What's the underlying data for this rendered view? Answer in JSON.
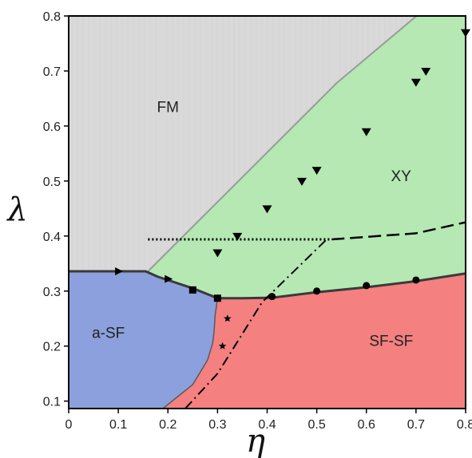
{
  "chart_data": {
    "type": "phase-diagram",
    "title": "",
    "xlabel": "η",
    "ylabel": "λ",
    "xlim": [
      0,
      0.8
    ],
    "ylim": [
      0.0865,
      0.8
    ],
    "grid": false,
    "x_ticks": [
      "0",
      "0.1",
      "0.2",
      "0.3",
      "0.4",
      "0.5",
      "0.6",
      "0.7",
      "0.8"
    ],
    "y_ticks": [
      "0.1",
      "0.2",
      "0.3",
      "0.4",
      "0.5",
      "0.6",
      "0.7",
      "0.8"
    ],
    "regions": [
      {
        "label": "FM",
        "color": "#d9d9d9",
        "label_at": [
          0.2,
          0.625
        ]
      },
      {
        "label": "XY",
        "color": "#b5e8b3",
        "label_at": [
          0.67,
          0.5
        ]
      },
      {
        "label": "a-SF",
        "color": "#8ba0dc",
        "label_at": [
          0.08,
          0.215
        ]
      },
      {
        "label": "SF-SF",
        "color": "#f48080",
        "label_at": [
          0.65,
          0.2
        ]
      }
    ],
    "boundaries": {
      "fm_upper": [
        [
          0.16,
          0.336
        ],
        [
          0.54,
          0.678
        ],
        [
          0.8,
          0.875
        ]
      ],
      "sf_upper": [
        [
          0,
          0.336
        ],
        [
          0.155,
          0.336
        ],
        [
          0.18,
          0.326
        ],
        [
          0.25,
          0.305
        ],
        [
          0.3,
          0.287
        ],
        [
          0.35,
          0.287
        ],
        [
          0.41,
          0.288
        ],
        [
          0.5,
          0.298
        ],
        [
          0.6,
          0.307
        ],
        [
          0.7,
          0.318
        ],
        [
          0.8,
          0.332
        ]
      ],
      "asf_sf": [
        [
          0.3,
          0.287
        ],
        [
          0.295,
          0.255
        ],
        [
          0.293,
          0.225
        ],
        [
          0.29,
          0.205
        ],
        [
          0.28,
          0.175
        ],
        [
          0.25,
          0.13
        ],
        [
          0.19,
          0.0865
        ]
      ]
    },
    "reference_lines": [
      {
        "style": "dotted",
        "points": [
          [
            0.16,
            0.394
          ],
          [
            0.53,
            0.394
          ]
        ]
      },
      {
        "style": "dashed",
        "points": [
          [
            0.53,
            0.394
          ],
          [
            0.7,
            0.405
          ],
          [
            0.8,
            0.425
          ]
        ]
      },
      {
        "style": "dash-dot",
        "points": [
          [
            0.235,
            0.0865
          ],
          [
            0.3,
            0.15
          ],
          [
            0.39,
            0.28
          ],
          [
            0.52,
            0.394
          ]
        ]
      }
    ],
    "markers": [
      {
        "shape": "triangle-right",
        "points": [
          [
            0.1,
            0.336
          ],
          [
            0.2,
            0.322
          ]
        ]
      },
      {
        "shape": "square",
        "points": [
          [
            0.25,
            0.302
          ],
          [
            0.3,
            0.287
          ]
        ]
      },
      {
        "shape": "star",
        "points": [
          [
            0.32,
            0.25
          ],
          [
            0.31,
            0.2
          ]
        ]
      },
      {
        "shape": "triangle-down",
        "points": [
          [
            0.3,
            0.37
          ],
          [
            0.34,
            0.4
          ],
          [
            0.4,
            0.45
          ],
          [
            0.47,
            0.5
          ],
          [
            0.5,
            0.52
          ],
          [
            0.6,
            0.59
          ],
          [
            0.7,
            0.68
          ],
          [
            0.72,
            0.7
          ],
          [
            0.8,
            0.77
          ]
        ]
      },
      {
        "shape": "circle",
        "points": [
          [
            0.41,
            0.29
          ],
          [
            0.5,
            0.3
          ],
          [
            0.6,
            0.31
          ],
          [
            0.7,
            0.32
          ]
        ]
      }
    ]
  }
}
